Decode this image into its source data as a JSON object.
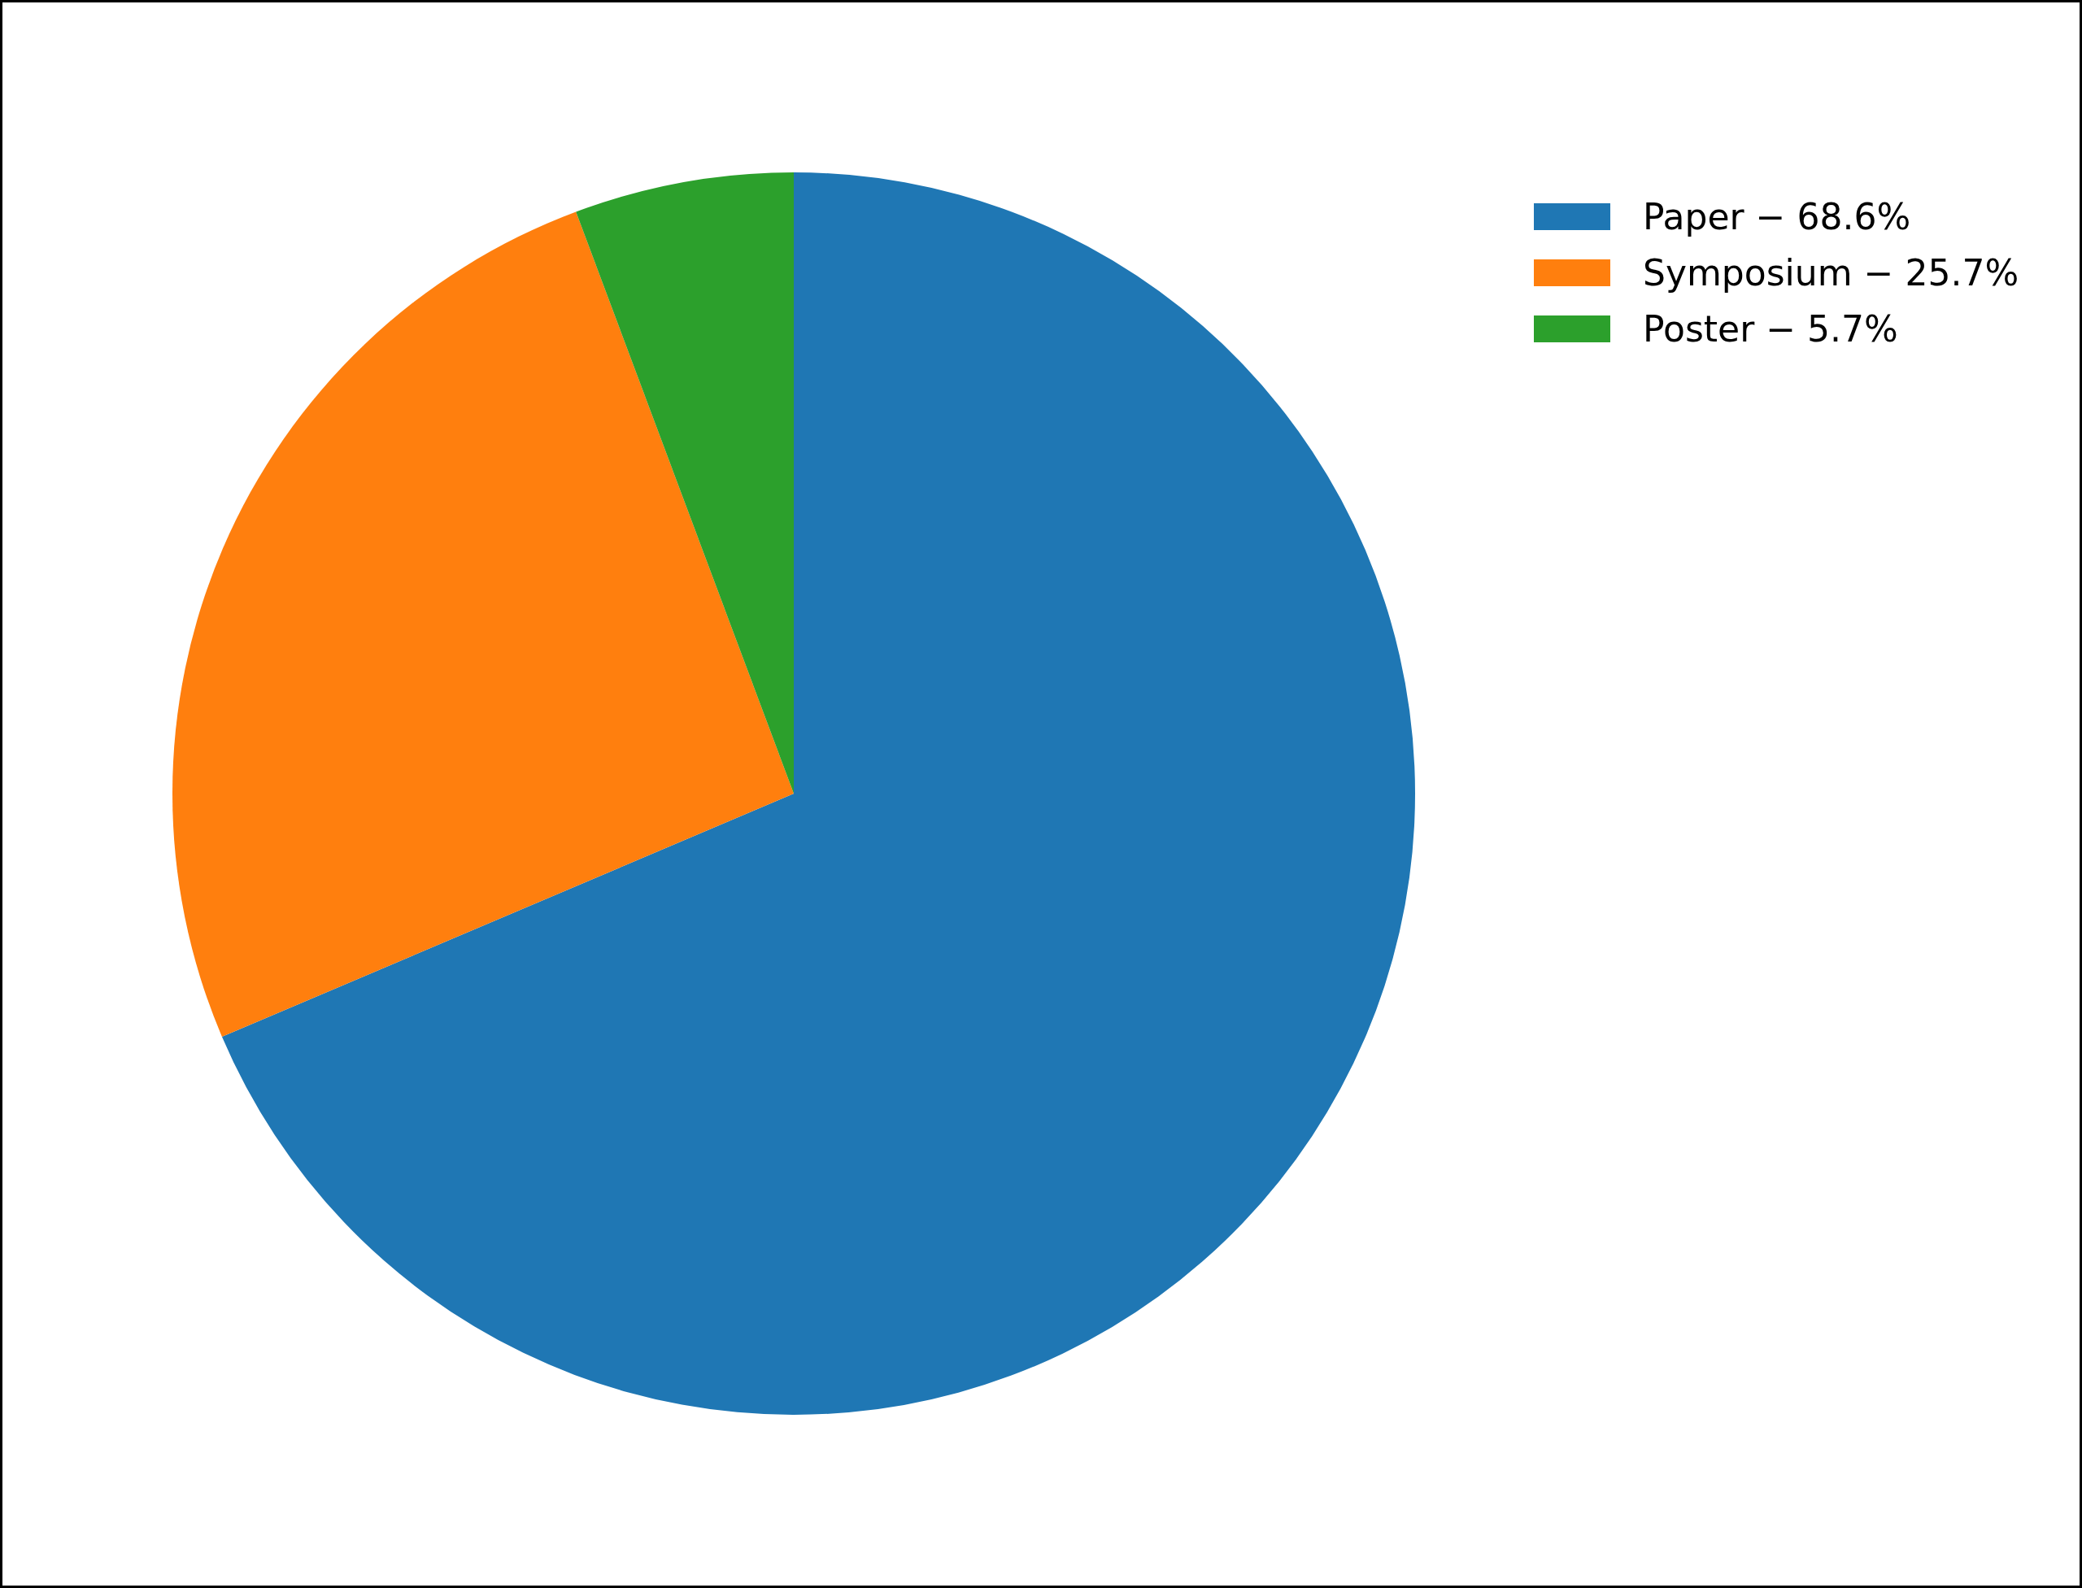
{
  "chart_data": {
    "type": "pie",
    "categories": [
      "Paper − 68.6%",
      "Symposium − 25.7%",
      "Poster − 5.7%"
    ],
    "values": [
      68.6,
      25.7,
      5.7
    ],
    "colors": [
      "#1f77b4",
      "#ff7f0e",
      "#2ca02c"
    ],
    "legend": "top right"
  }
}
